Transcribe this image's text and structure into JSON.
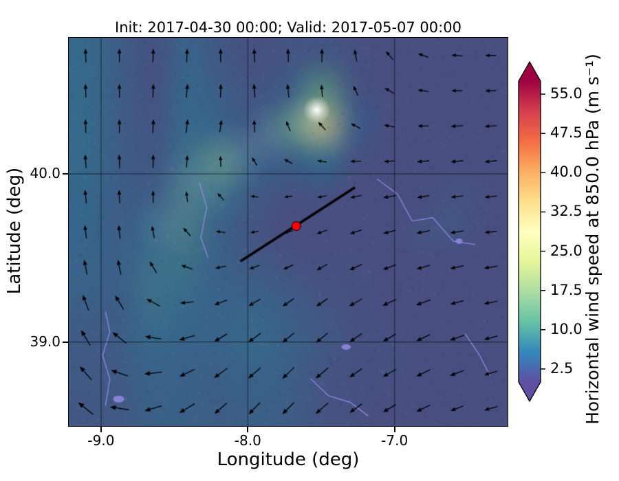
{
  "figure": {
    "title": "Init: 2017-04-30 00:00; Valid: 2017-05-07 00:00",
    "xlabel": "Longitude (deg)",
    "ylabel": "Latitude (deg)"
  },
  "axes": {
    "xlim": [
      -9.22,
      -6.23
    ],
    "ylim": [
      38.5,
      40.81
    ],
    "xticks": [
      {
        "value": -9.0,
        "label": "-9.0"
      },
      {
        "value": -8.0,
        "label": "-8.0"
      },
      {
        "value": -7.0,
        "label": "-7.0"
      }
    ],
    "yticks": [
      {
        "value": 39.0,
        "label": "39.0"
      },
      {
        "value": 40.0,
        "label": "40.0"
      }
    ]
  },
  "colorbar": {
    "label": "Horizontal wind speed at 850.0 hPa (m s⁻¹)",
    "range": [
      0,
      57.5
    ],
    "ticks": [
      {
        "value": 2.5,
        "label": "2.5"
      },
      {
        "value": 10.0,
        "label": "10.0"
      },
      {
        "value": 17.5,
        "label": "17.5"
      },
      {
        "value": 25.0,
        "label": "25.0"
      },
      {
        "value": 32.5,
        "label": "32.5"
      },
      {
        "value": 40.0,
        "label": "40.0"
      },
      {
        "value": 47.5,
        "label": "47.5"
      },
      {
        "value": 55.0,
        "label": "55.0"
      }
    ],
    "stops": [
      "#5e4fa2",
      "#3288bd",
      "#66c2a5",
      "#abdda4",
      "#e6f598",
      "#ffffbf",
      "#fee08b",
      "#fdae61",
      "#f46d43",
      "#d53e4f",
      "#9e0142"
    ],
    "extend_low_color": "#5e4fa2",
    "extend_high_color": "#9e0142"
  },
  "chart_data": {
    "type": "heatmap",
    "title": "Init: 2017-04-30 00:00; Valid: 2017-05-07 00:00",
    "xlabel": "Longitude (deg)",
    "ylabel": "Latitude (deg)",
    "xlim": [
      -9.22,
      -6.23
    ],
    "ylim": [
      38.5,
      40.81
    ],
    "xticks": [
      -9.0,
      -8.0,
      -7.0
    ],
    "yticks": [
      39.0,
      40.0
    ],
    "colorbar_label": "Horizontal wind speed at 850.0 hPa (m s⁻¹)",
    "colorbar_ticks": [
      2.5,
      10.0,
      17.5,
      25.0,
      32.5,
      40.0,
      47.5,
      55.0
    ],
    "colorbar_range": [
      0,
      57.5
    ],
    "grid_lons": [
      -9.1,
      -8.87,
      -8.64,
      -8.41,
      -8.18,
      -7.95,
      -7.72,
      -7.49,
      -7.26,
      -7.03,
      -6.8,
      -6.57,
      -6.34
    ],
    "grid_lats": [
      40.7,
      40.5,
      40.29,
      40.08,
      39.87,
      39.66,
      39.45,
      39.24,
      39.03,
      38.82,
      38.61
    ],
    "wind_speed_ms": [
      [
        6,
        4,
        2,
        5,
        3,
        2,
        2.5,
        3,
        2,
        1.5,
        1.5,
        1.5,
        1.5
      ],
      [
        6,
        4,
        2,
        5.5,
        4,
        2.5,
        4,
        12,
        2.5,
        1.5,
        1.5,
        1.5,
        1.5
      ],
      [
        6,
        4,
        2.5,
        6,
        5,
        3.5,
        10,
        26,
        4,
        1.5,
        1.5,
        1.5,
        1.5
      ],
      [
        6,
        4,
        3,
        7,
        10,
        5,
        4,
        6,
        2,
        1.5,
        1.5,
        1.5,
        1.5
      ],
      [
        5.5,
        4,
        4,
        8,
        7,
        3.5,
        2,
        2,
        1.5,
        1.5,
        1.5,
        2.5,
        1.5
      ],
      [
        5.5,
        4,
        6,
        8,
        4.5,
        2.5,
        1.5,
        1.5,
        1.5,
        1.5,
        2.5,
        2.5,
        1.5
      ],
      [
        5,
        4.5,
        7,
        7,
        4.5,
        3.5,
        2.5,
        2,
        2,
        1.5,
        1.5,
        1.5,
        1.5
      ],
      [
        4.5,
        4,
        7,
        6,
        5,
        5,
        4,
        2.5,
        2,
        1.5,
        1.5,
        1.5,
        1.5
      ],
      [
        3.5,
        4,
        6,
        5,
        5,
        6,
        4.5,
        3.5,
        2,
        2,
        1.5,
        1.5,
        1.5
      ],
      [
        3.5,
        3.5,
        5,
        4.5,
        4.5,
        5,
        4.5,
        2.5,
        2,
        2,
        1.5,
        1.5,
        1.5
      ],
      [
        3,
        3.5,
        4.5,
        4.5,
        4,
        4.5,
        4,
        2.5,
        2,
        1.5,
        1.5,
        1.5,
        1.5
      ]
    ],
    "quiver_angles_deg": [
      [
        92,
        90,
        88,
        88,
        90,
        92,
        92,
        90,
        100,
        130,
        160,
        175,
        180
      ],
      [
        92,
        90,
        88,
        85,
        88,
        94,
        96,
        95,
        115,
        150,
        172,
        180,
        182
      ],
      [
        92,
        90,
        87,
        83,
        82,
        92,
        112,
        132,
        152,
        170,
        180,
        183,
        184
      ],
      [
        94,
        92,
        89,
        86,
        92,
        122,
        152,
        172,
        181,
        184,
        185,
        185,
        185
      ],
      [
        96,
        93,
        91,
        96,
        132,
        172,
        186,
        190,
        191,
        190,
        189,
        186,
        185
      ],
      [
        97,
        96,
        101,
        132,
        172,
        191,
        196,
        200,
        199,
        195,
        191,
        189,
        186
      ],
      [
        101,
        101,
        121,
        161,
        191,
        201,
        206,
        209,
        205,
        200,
        196,
        191,
        189
      ],
      [
        111,
        121,
        151,
        186,
        201,
        211,
        214,
        214,
        210,
        205,
        200,
        195,
        191
      ],
      [
        121,
        141,
        171,
        196,
        211,
        216,
        219,
        219,
        215,
        210,
        205,
        200,
        195
      ],
      [
        131,
        161,
        186,
        206,
        216,
        221,
        224,
        220,
        215,
        210,
        206,
        201,
        196
      ],
      [
        141,
        171,
        196,
        211,
        221,
        226,
        225,
        221,
        216,
        211,
        206,
        201,
        196
      ]
    ],
    "quiver_speed_ms": [
      [
        8,
        8,
        8,
        8,
        8,
        8,
        8,
        8,
        7,
        6,
        6,
        6,
        6
      ],
      [
        8,
        8,
        8,
        8,
        8,
        8,
        8,
        7,
        6,
        6,
        6,
        6,
        6
      ],
      [
        8,
        8,
        8,
        8,
        7,
        7,
        6,
        6,
        6,
        6,
        6,
        7,
        7
      ],
      [
        8,
        8,
        8,
        7,
        6,
        5,
        5,
        5,
        6,
        6,
        7,
        7,
        7
      ],
      [
        8,
        8,
        7,
        6,
        5,
        4,
        4,
        5,
        6,
        7,
        7,
        7,
        7
      ],
      [
        8,
        8,
        7,
        6,
        5,
        4,
        5,
        6,
        7,
        7,
        8,
        8,
        7
      ],
      [
        9,
        9,
        8,
        7,
        6,
        6,
        6,
        7,
        8,
        8,
        8,
        8,
        8
      ],
      [
        10,
        10,
        9,
        8,
        8,
        8,
        8,
        8,
        9,
        9,
        9,
        8,
        8
      ],
      [
        11,
        11,
        10,
        10,
        9,
        9,
        9,
        9,
        9,
        9,
        9,
        9,
        8
      ],
      [
        11,
        11,
        11,
        10,
        10,
        10,
        10,
        10,
        9,
        9,
        9,
        9,
        8
      ],
      [
        12,
        12,
        11,
        11,
        10,
        10,
        10,
        10,
        9,
        9,
        9,
        8,
        8
      ]
    ],
    "graticule": {
      "lons": [
        -9.0,
        -8.0,
        -7.0
      ],
      "lats": [
        39.0,
        40.0
      ]
    },
    "cross_section_line": {
      "from": [
        -8.05,
        39.48
      ],
      "to": [
        -7.27,
        39.92
      ]
    },
    "marker": {
      "lon": -7.67,
      "lat": 39.69,
      "color": "#ff0000"
    }
  }
}
